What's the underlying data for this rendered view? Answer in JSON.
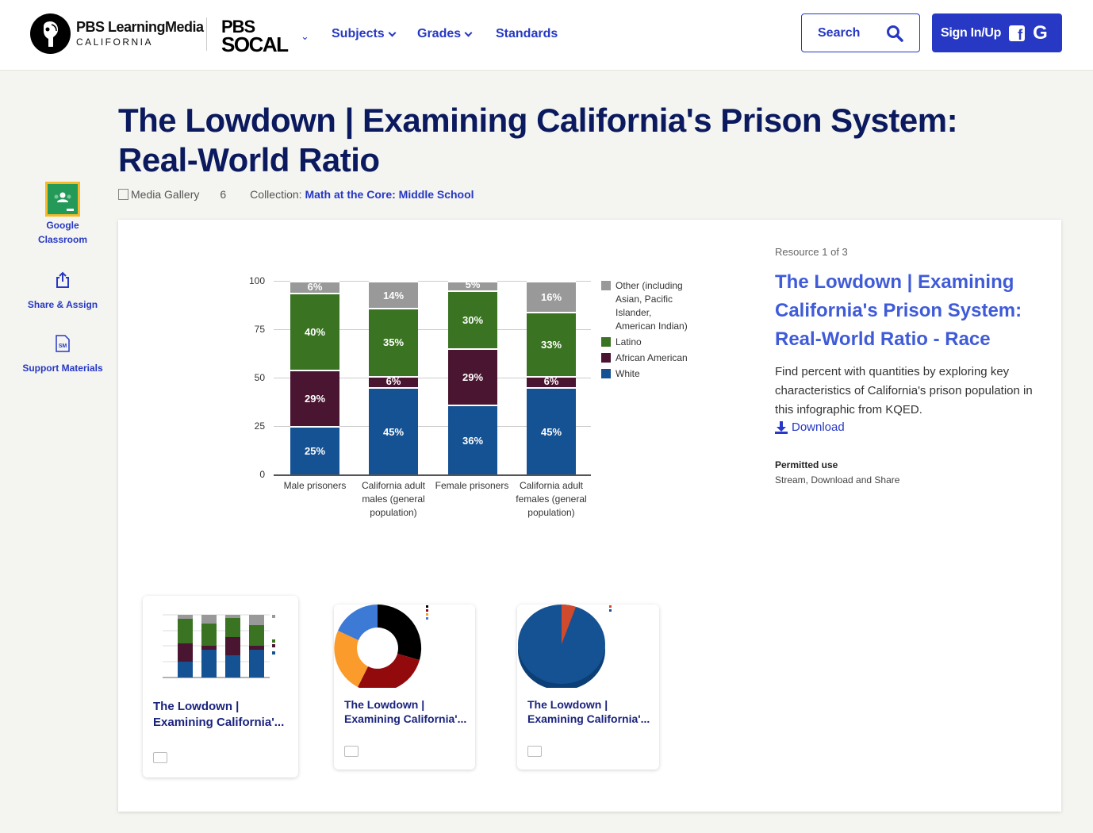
{
  "header": {
    "logo_line1": "PBS LearningMedia",
    "logo_line2": "CALIFORNIA",
    "station_line1": "PBS",
    "station_line2": "SOCAL",
    "nav": [
      {
        "label": "Subjects",
        "has_dropdown": true
      },
      {
        "label": "Grades",
        "has_dropdown": true
      },
      {
        "label": "Standards",
        "has_dropdown": false
      }
    ],
    "search_label": "Search",
    "signin_label": "Sign In/Up",
    "signin_fb": "f",
    "signin_google": "G"
  },
  "page": {
    "title": "The Lowdown | Examining California's Prison System: Real-World Ratio",
    "type_label": "Media Gallery",
    "item_count": "6",
    "collection_prefix": "Collection:",
    "collection_name": "Math at the Core: Middle School"
  },
  "sidebar": {
    "items": [
      {
        "label": "Google Classroom",
        "icon": "google-classroom-icon"
      },
      {
        "label": "Share & Assign",
        "icon": "share-icon"
      },
      {
        "label": "Support Materials",
        "icon": "support-materials-icon"
      }
    ]
  },
  "resource": {
    "counter": "Resource 1 of 3",
    "title": "The Lowdown | Examining California's Prison System: Real-World Ratio - Race",
    "description": "Find percent with quantities by exploring key characteristics of California's prison population in this infographic from KQED.",
    "download_label": "Download",
    "permitted_use_label": "Permitted use",
    "permitted_use_value": "Stream, Download and Share"
  },
  "thumbnails": [
    {
      "title": "The Lowdown | Examining California'...",
      "kind": "stacked-bar",
      "selected": true
    },
    {
      "title": "The Lowdown | Examining California'...",
      "kind": "donut",
      "selected": false
    },
    {
      "title": "The Lowdown | Examining California'...",
      "kind": "pie",
      "selected": false
    }
  ],
  "chart_data": {
    "type": "bar",
    "stacked": true,
    "title": "",
    "xlabel": "",
    "ylabel": "",
    "ylim": [
      0,
      100
    ],
    "yticks": [
      "0",
      "25",
      "50",
      "75",
      "100"
    ],
    "grid": true,
    "legend_position": "right",
    "categories": [
      "Male prisoners",
      "California adult males (general population)",
      "Female prisoners",
      "California adult females (general population)"
    ],
    "series": [
      {
        "name": "White",
        "color": "#155293",
        "values": [
          25,
          45,
          36,
          45
        ],
        "labels": [
          "25%",
          "45%",
          "36%",
          "45%"
        ]
      },
      {
        "name": "African American",
        "color": "#4a1530",
        "values": [
          29,
          6,
          29,
          6
        ],
        "labels": [
          "29%",
          "6%",
          "29%",
          "6%"
        ]
      },
      {
        "name": "Latino",
        "color": "#3a7423",
        "values": [
          40,
          35,
          30,
          33
        ],
        "labels": [
          "40%",
          "35%",
          "30%",
          "33%"
        ]
      },
      {
        "name": "Other (including Asian, Pacific Islander, American Indian)",
        "color": "#999999",
        "values": [
          6,
          14,
          5,
          16
        ],
        "labels": [
          "6%",
          "14%",
          "5%",
          "16%"
        ]
      }
    ]
  },
  "colors": {
    "brand_blue": "#2638c4",
    "title_navy": "#0b1a5e",
    "link_blue": "#3f5bd8",
    "page_bg": "#f4f4f0"
  }
}
